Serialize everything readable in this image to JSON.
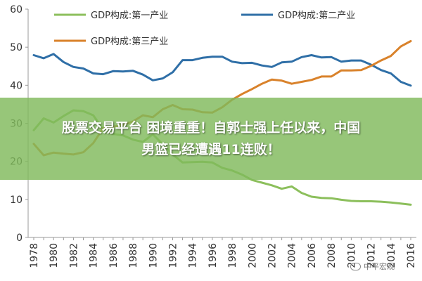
{
  "banner": {
    "line1": "股票交易平台 困境重重！自郭士强上任以来，中国",
    "line2": "男篮已经遭遇11连败！"
  },
  "watermark": {
    "text": "中平宏观"
  },
  "colors": {
    "primary": "#8cbf5c",
    "secondary": "#2f6fa7",
    "tertiary": "#d9822b",
    "banner": "#80ba5c"
  },
  "chart_data": {
    "type": "line",
    "title": "",
    "xlabel": "",
    "ylabel": "",
    "ylim": [
      0,
      60
    ],
    "yticks": [
      0,
      10,
      20,
      30,
      40,
      50,
      60
    ],
    "xticks": [
      1978,
      1980,
      1982,
      1984,
      1986,
      1988,
      1990,
      1992,
      1994,
      1996,
      1998,
      2000,
      2002,
      2004,
      2006,
      2008,
      2010,
      2012,
      2014,
      2016
    ],
    "grid": false,
    "legend_position": "top",
    "x": [
      1978,
      1979,
      1980,
      1981,
      1982,
      1983,
      1984,
      1985,
      1986,
      1987,
      1988,
      1989,
      1990,
      1991,
      1992,
      1993,
      1994,
      1995,
      1996,
      1997,
      1998,
      1999,
      2000,
      2001,
      2002,
      2003,
      2004,
      2005,
      2006,
      2007,
      2008,
      2009,
      2010,
      2011,
      2012,
      2013,
      2014,
      2015,
      2016
    ],
    "series": [
      {
        "name": "GDP构成:第一产业",
        "color": "#8cbf5c",
        "values": [
          28.2,
          31.3,
          30.2,
          31.9,
          33.4,
          33.2,
          32.1,
          28.4,
          27.2,
          26.8,
          25.7,
          25.1,
          27.1,
          24.5,
          21.8,
          19.7,
          19.8,
          19.9,
          19.7,
          18.3,
          17.6,
          16.5,
          15.1,
          14.4,
          13.7,
          12.8,
          13.4,
          11.7,
          10.7,
          10.4,
          10.3,
          9.9,
          9.6,
          9.5,
          9.5,
          9.4,
          9.2,
          8.9,
          8.6
        ]
      },
      {
        "name": "GDP构成:第二产业",
        "color": "#2f6fa7",
        "values": [
          47.9,
          47.1,
          48.2,
          46.1,
          44.8,
          44.4,
          43.1,
          42.9,
          43.7,
          43.6,
          43.8,
          42.8,
          41.3,
          41.8,
          43.4,
          46.6,
          46.6,
          47.2,
          47.5,
          47.5,
          46.2,
          45.8,
          45.9,
          45.2,
          44.8,
          46.0,
          46.2,
          47.4,
          47.9,
          47.3,
          47.4,
          46.2,
          46.5,
          46.5,
          45.4,
          44.0,
          43.1,
          40.9,
          39.9
        ]
      },
      {
        "name": "GDP构成:第三产业",
        "color": "#d9822b",
        "values": [
          24.6,
          21.6,
          22.3,
          22.0,
          21.8,
          22.4,
          24.8,
          28.7,
          29.1,
          29.6,
          30.5,
          32.1,
          31.6,
          33.7,
          34.8,
          33.7,
          33.6,
          32.9,
          32.8,
          34.2,
          36.2,
          37.7,
          39.0,
          40.4,
          41.5,
          41.2,
          40.4,
          40.9,
          41.4,
          42.3,
          42.3,
          43.9,
          43.9,
          44.0,
          45.1,
          46.5,
          47.7,
          50.2,
          51.6
        ]
      }
    ]
  }
}
